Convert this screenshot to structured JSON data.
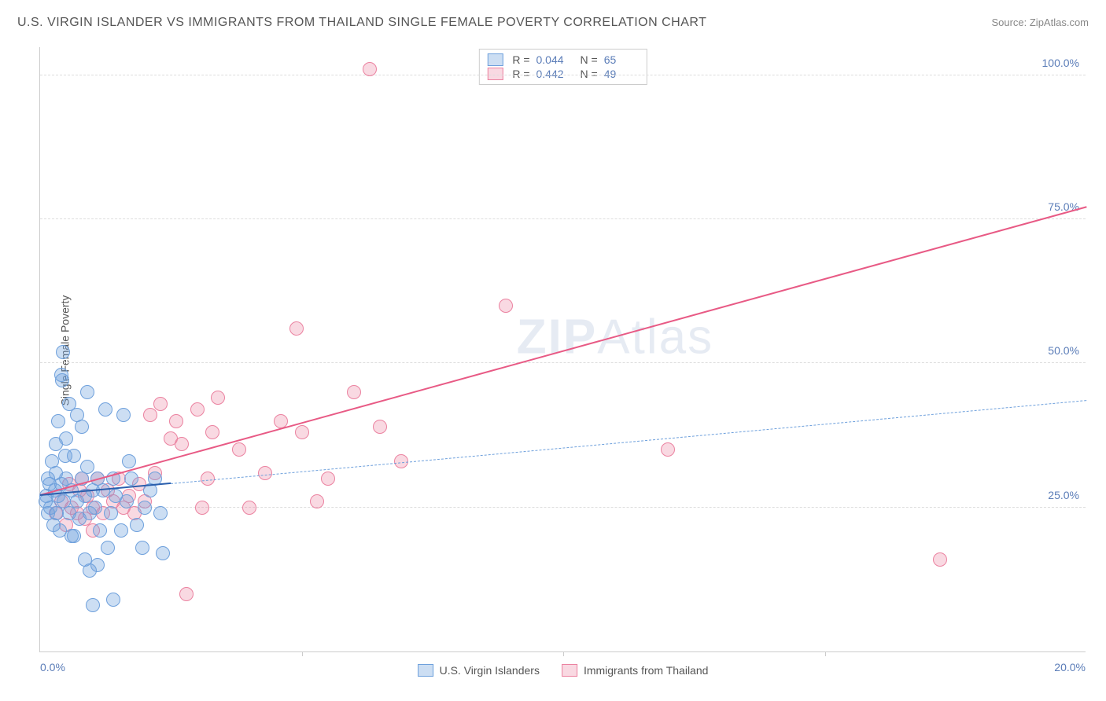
{
  "header": {
    "title": "U.S. VIRGIN ISLANDER VS IMMIGRANTS FROM THAILAND SINGLE FEMALE POVERTY CORRELATION CHART",
    "source": "Source: ZipAtlas.com"
  },
  "watermark": {
    "zip": "ZIP",
    "atlas": "Atlas"
  },
  "axes": {
    "y_label": "Single Female Poverty",
    "y_ticks": [
      {
        "value": 25,
        "label": "25.0%"
      },
      {
        "value": 50,
        "label": "50.0%"
      },
      {
        "value": 75,
        "label": "75.0%"
      },
      {
        "value": 100,
        "label": "100.0%"
      }
    ],
    "y_min": 0,
    "y_max": 105,
    "x_ticks_minor": [
      5,
      10,
      15
    ],
    "x_min_label": "0.0%",
    "x_max_label": "20.0%",
    "x_min": 0,
    "x_max": 20
  },
  "series": {
    "blue": {
      "name": "U.S. Virgin Islanders",
      "fill": "rgba(110, 160, 220, 0.35)",
      "stroke": "#6ea0dc",
      "marker_radius": 9,
      "R": "0.044",
      "N": "65",
      "trend": {
        "x1": 0,
        "y1": 27,
        "x2": 20,
        "y2": 43.5,
        "solid_until_x": 2.5,
        "solid_color": "#2b5fad",
        "solid_width": 2.5,
        "dash_color": "#6ea0dc",
        "dash_width": 1.5
      },
      "points": [
        [
          0.1,
          26
        ],
        [
          0.12,
          27
        ],
        [
          0.15,
          24
        ],
        [
          0.15,
          30
        ],
        [
          0.18,
          29
        ],
        [
          0.2,
          25
        ],
        [
          0.22,
          33
        ],
        [
          0.25,
          22
        ],
        [
          0.28,
          28
        ],
        [
          0.3,
          31
        ],
        [
          0.3,
          36
        ],
        [
          0.32,
          24
        ],
        [
          0.35,
          27
        ],
        [
          0.35,
          40
        ],
        [
          0.38,
          21
        ],
        [
          0.4,
          29
        ],
        [
          0.4,
          48
        ],
        [
          0.42,
          47
        ],
        [
          0.43,
          52
        ],
        [
          0.45,
          26
        ],
        [
          0.5,
          30
        ],
        [
          0.5,
          37
        ],
        [
          0.55,
          24
        ],
        [
          0.55,
          43
        ],
        [
          0.6,
          28
        ],
        [
          0.6,
          20
        ],
        [
          0.65,
          34
        ],
        [
          0.7,
          26
        ],
        [
          0.7,
          41
        ],
        [
          0.75,
          23
        ],
        [
          0.8,
          30
        ],
        [
          0.8,
          39
        ],
        [
          0.85,
          27
        ],
        [
          0.85,
          16
        ],
        [
          0.9,
          32
        ],
        [
          0.95,
          24
        ],
        [
          0.95,
          14
        ],
        [
          1.0,
          8
        ],
        [
          1.0,
          28
        ],
        [
          1.05,
          25
        ],
        [
          1.1,
          30
        ],
        [
          1.1,
          15
        ],
        [
          1.15,
          21
        ],
        [
          1.2,
          28
        ],
        [
          1.25,
          42
        ],
        [
          1.3,
          18
        ],
        [
          1.35,
          24
        ],
        [
          1.4,
          30
        ],
        [
          1.4,
          9
        ],
        [
          1.45,
          27
        ],
        [
          1.55,
          21
        ],
        [
          1.65,
          26
        ],
        [
          1.75,
          30
        ],
        [
          1.85,
          22
        ],
        [
          1.95,
          18
        ],
        [
          2.0,
          25
        ],
        [
          2.1,
          28
        ],
        [
          2.2,
          30
        ],
        [
          2.3,
          24
        ],
        [
          2.35,
          17
        ],
        [
          1.6,
          41
        ],
        [
          1.7,
          33
        ],
        [
          0.65,
          20
        ],
        [
          0.48,
          34
        ],
        [
          0.9,
          45
        ]
      ]
    },
    "pink": {
      "name": "Immigrants from Thailand",
      "fill": "rgba(235, 130, 160, 0.30)",
      "stroke": "#eb82a0",
      "marker_radius": 9,
      "R": "0.442",
      "N": "49",
      "trend": {
        "x1": 0,
        "y1": 27,
        "x2": 20,
        "y2": 77,
        "color": "#e85a85",
        "width": 2.5
      },
      "points": [
        [
          0.3,
          24
        ],
        [
          0.4,
          26
        ],
        [
          0.5,
          22
        ],
        [
          0.55,
          29
        ],
        [
          0.6,
          25
        ],
        [
          0.7,
          24
        ],
        [
          0.75,
          28
        ],
        [
          0.8,
          30
        ],
        [
          0.85,
          23
        ],
        [
          0.9,
          27
        ],
        [
          1.0,
          25
        ],
        [
          1.0,
          21
        ],
        [
          1.1,
          30
        ],
        [
          1.2,
          24
        ],
        [
          1.3,
          28
        ],
        [
          1.4,
          26
        ],
        [
          1.5,
          30
        ],
        [
          1.6,
          25
        ],
        [
          1.7,
          27
        ],
        [
          1.8,
          24
        ],
        [
          1.9,
          29
        ],
        [
          2.0,
          26
        ],
        [
          2.1,
          41
        ],
        [
          2.2,
          31
        ],
        [
          2.3,
          43
        ],
        [
          2.5,
          37
        ],
        [
          2.6,
          40
        ],
        [
          2.7,
          36
        ],
        [
          2.8,
          10
        ],
        [
          3.0,
          42
        ],
        [
          3.1,
          25
        ],
        [
          3.2,
          30
        ],
        [
          3.3,
          38
        ],
        [
          3.4,
          44
        ],
        [
          3.8,
          35
        ],
        [
          4.0,
          25
        ],
        [
          4.3,
          31
        ],
        [
          4.6,
          40
        ],
        [
          4.9,
          56
        ],
        [
          5.0,
          38
        ],
        [
          5.3,
          26
        ],
        [
          5.5,
          30
        ],
        [
          6.0,
          45
        ],
        [
          6.3,
          101
        ],
        [
          6.5,
          39
        ],
        [
          6.9,
          33
        ],
        [
          8.9,
          60
        ],
        [
          12.0,
          35
        ],
        [
          17.2,
          16
        ]
      ]
    }
  },
  "stats_labels": {
    "R": "R =",
    "N": "N ="
  },
  "legend_swatch": {
    "blue": {
      "fill": "rgba(110,160,220,0.35)",
      "border": "#6ea0dc"
    },
    "pink": {
      "fill": "rgba(235,130,160,0.30)",
      "border": "#eb82a0"
    }
  }
}
